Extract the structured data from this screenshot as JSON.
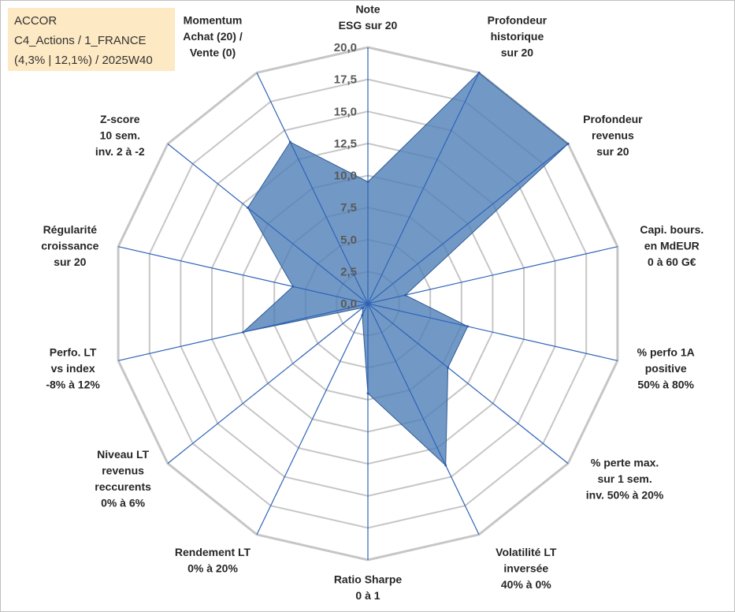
{
  "title_box": {
    "line1": "ACCOR",
    "line2": "C4_Actions / 1_FRANCE",
    "line3": "(4,3% | 12,1%) / 2025W40"
  },
  "chart_data": {
    "type": "radar",
    "axes": [
      {
        "label": [
          "Note",
          "ESG sur 20"
        ],
        "value": 9.5
      },
      {
        "label": [
          "Profondeur",
          "historique",
          "sur 20"
        ],
        "value": 20.0
      },
      {
        "label": [
          "Profondeur",
          "revenus",
          "sur 20"
        ],
        "value": 20.0
      },
      {
        "label": [
          "Capi. bours.",
          "en MdEUR",
          "0 à 60 G€"
        ],
        "value": 3.0
      },
      {
        "label": [
          "% perfo 1A",
          "positive",
          "50% à 80%"
        ],
        "value": 8.0
      },
      {
        "label": [
          "% perte max.",
          "sur 1 sem.",
          "inv. 50% à 20%"
        ],
        "value": 8.0
      },
      {
        "label": [
          "Volatilité LT",
          "inversée",
          "40% à 0%"
        ],
        "value": 14.0
      },
      {
        "label": [
          "Ratio Sharpe",
          "0 à 1"
        ],
        "value": 7.0
      },
      {
        "label": [
          "Rendement LT",
          "0% à 20%"
        ],
        "value": 1.0
      },
      {
        "label": [
          "Niveau LT",
          "revenus",
          "reccurents",
          "0% à 6%"
        ],
        "value": 0.5
      },
      {
        "label": [
          "Perfo. LT",
          "vs index",
          "-8% à 12%"
        ],
        "value": 10.0
      },
      {
        "label": [
          "Régularité",
          "croissance",
          "sur 20"
        ],
        "value": 6.0
      },
      {
        "label": [
          "Z-score",
          "10 sem.",
          "inv. 2 à -2"
        ],
        "value": 12.0
      },
      {
        "label": [
          "Momentum",
          "Achat (20) /",
          "Vente (0)"
        ],
        "value": 14.0
      }
    ],
    "rlim": [
      0,
      20
    ],
    "ticks": [
      "0,0",
      "2,5",
      "5,0",
      "7,5",
      "10,0",
      "12,5",
      "15,0",
      "17,5",
      "20,0"
    ],
    "grid": true,
    "legend": "none",
    "colors": {
      "fill": "#4f7fb8",
      "stroke": "#2f5b94",
      "spoke": "#2e63b8",
      "grid": "#c6c6c6",
      "title_bg": "#fde9c3"
    }
  }
}
